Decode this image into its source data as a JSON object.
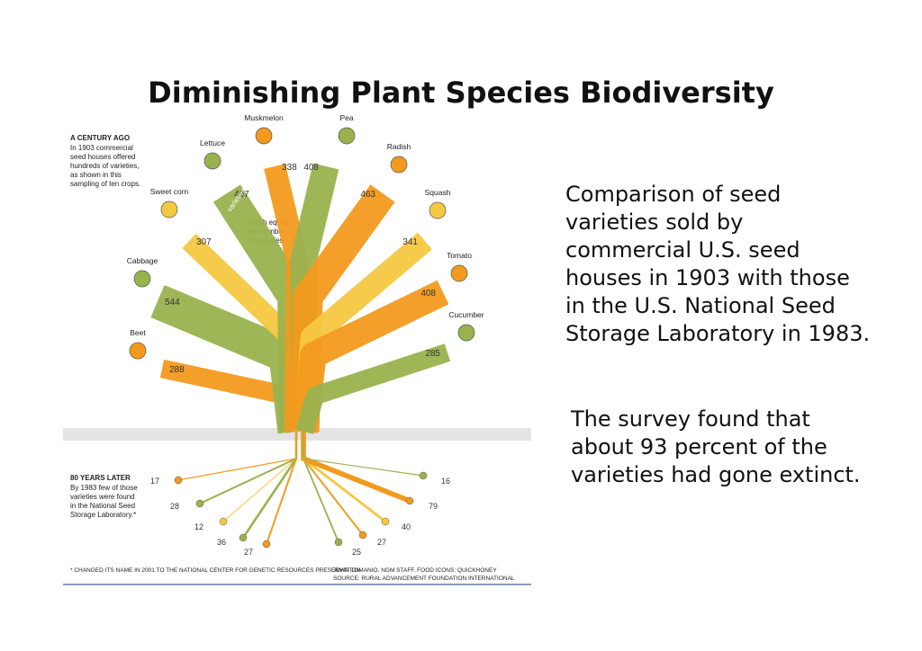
{
  "title": "Diminishing Plant Species Biodiversity",
  "infographic": {
    "top_heading": "A CENTURY AGO",
    "top_text": "In 1903 commercial seed houses offered hundreds of varieties, as shown in this sampling of ten crops.",
    "width_note": "Width equals the number of varieties",
    "varieties_word": "varieties",
    "bottom_heading": "80 YEARS LATER",
    "bottom_text": "By 1983 few of those varieties were found in the National Seed Storage Laboratory.*",
    "footnote": "* CHANGED ITS NAME IN 2001 TO THE NATIONAL CENTER FOR GENETIC RESOURCES PRESERVATION",
    "credit": "JOHN TOMANIO, NGM STAFF. FOOD ICONS: QUICKHONEY",
    "source": "SOURCE: RURAL ADVANCEMENT FOUNDATION INTERNATIONAL",
    "crops": [
      {
        "name": "Beet",
        "color": "#f39a1e",
        "varieties_1903": 288,
        "varieties_1983": 17
      },
      {
        "name": "Cabbage",
        "color": "#9ab24e",
        "varieties_1903": 544,
        "varieties_1983": 28
      },
      {
        "name": "Sweet corn",
        "color": "#f5c842",
        "varieties_1903": 307,
        "varieties_1983": 12
      },
      {
        "name": "Lettuce",
        "color": "#9ab24e",
        "varieties_1903": 497,
        "varieties_1983": 36
      },
      {
        "name": "Muskmelon",
        "color": "#f39a1e",
        "varieties_1903": 338,
        "varieties_1983": 27
      },
      {
        "name": "Pea",
        "color": "#9ab24e",
        "varieties_1903": 408,
        "varieties_1983": 25
      },
      {
        "name": "Radish",
        "color": "#f39a1e",
        "varieties_1903": 463,
        "varieties_1983": 27
      },
      {
        "name": "Squash",
        "color": "#f5c842",
        "varieties_1903": 341,
        "varieties_1983": 40
      },
      {
        "name": "Tomato",
        "color": "#f39a1e",
        "varieties_1903": 408,
        "varieties_1983": 79
      },
      {
        "name": "Cucumber",
        "color": "#9ab24e",
        "varieties_1903": 285,
        "varieties_1983": 16
      }
    ]
  },
  "text": {
    "paragraph1": [
      "Comparison of seed",
      "varieties sold by",
      "commercial U.S. seed",
      "houses in 1903 with those",
      "in the U.S. National Seed",
      "Storage Laboratory in 1983."
    ],
    "paragraph2": [
      "The survey found that",
      "about 93 percent of the",
      "varieties had gone extinct."
    ]
  }
}
